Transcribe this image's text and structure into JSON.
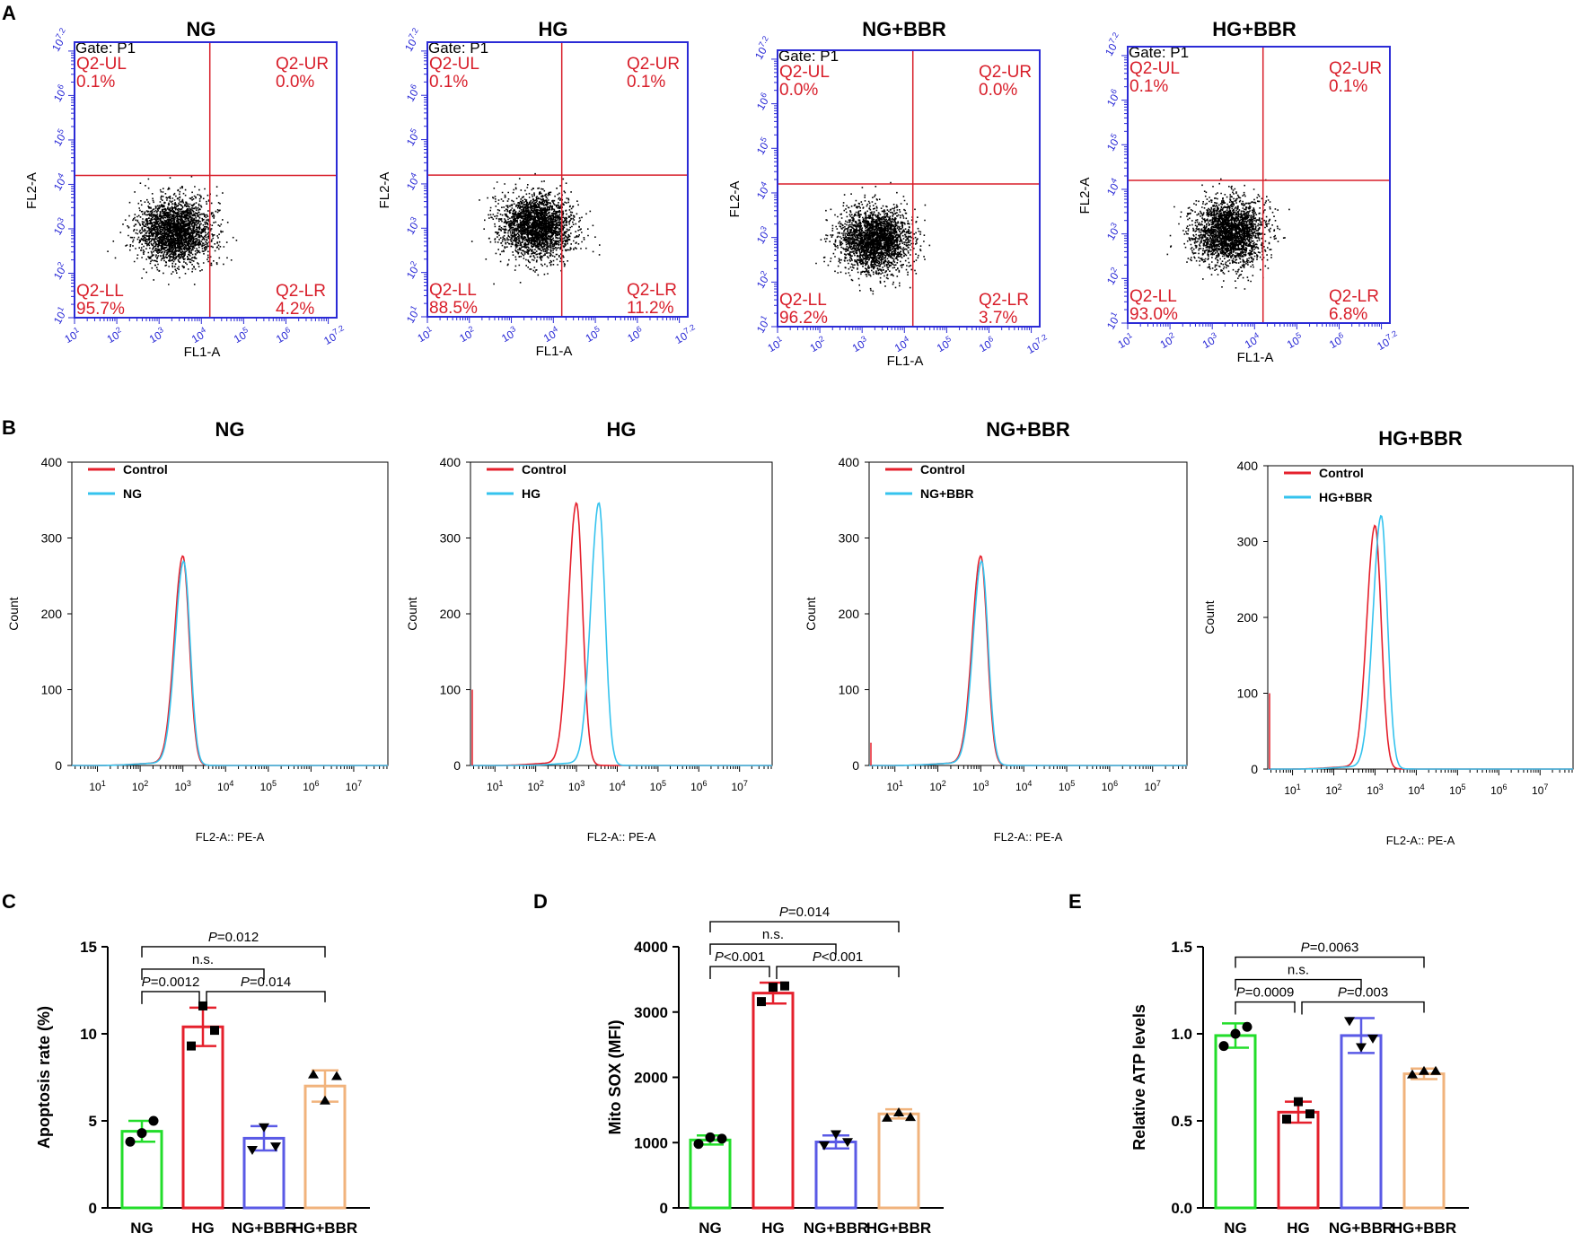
{
  "panel_labels": [
    "A",
    "B",
    "C",
    "D",
    "E"
  ],
  "colors": {
    "scatter_axis": "#2b2bd6",
    "quad_line": "#d81e2a",
    "quad_text": "#d81e2a",
    "control": "#e5202c",
    "treated": "#35c3ee",
    "bar_NG": "#22dd2a",
    "bar_HG": "#e5202c",
    "bar_NGBBR": "#5a5ae6",
    "bar_HGBBR": "#f1b37c"
  },
  "chart_data": [
    {
      "type": "scatter",
      "panel": "A",
      "gate": "Gate: P1",
      "xlabel": "FL1-A",
      "ylabel": "FL2-A",
      "x_ticks": [
        "10^1",
        "10^2",
        "10^3",
        "10^4",
        "10^5",
        "10^6",
        "10^7.2"
      ],
      "y_ticks": [
        "10^1",
        "10^2",
        "10^3",
        "10^4",
        "10^5",
        "10^6",
        "10^7.2"
      ],
      "xlim_log": [
        1,
        7.2
      ],
      "ylim_log": [
        1,
        7.2
      ],
      "quadrant_names": {
        "UL": "Q2-UL",
        "UR": "Q2-UR",
        "LL": "Q2-LL",
        "LR": "Q2-LR"
      },
      "plots": [
        {
          "title": "NG",
          "x_gate_log": 4.2,
          "y_gate_log": 4.2,
          "center_log": [
            3.35,
            2.95
          ],
          "UL": "0.1%",
          "UR": "0.0%",
          "LL": "95.7%",
          "LR": "4.2%"
        },
        {
          "title": "HG",
          "x_gate_log": 4.2,
          "y_gate_log": 4.2,
          "center_log": [
            3.6,
            3.05
          ],
          "UL": "0.1%",
          "UR": "0.1%",
          "LL": "88.5%",
          "LR": "11.2%"
        },
        {
          "title": "NG+BBR",
          "x_gate_log": 4.2,
          "y_gate_log": 4.2,
          "center_log": [
            3.3,
            2.95
          ],
          "UL": "0.0%",
          "UR": "0.0%",
          "LL": "96.2%",
          "LR": "3.7%"
        },
        {
          "title": "HG+BBR",
          "x_gate_log": 4.2,
          "y_gate_log": 4.2,
          "center_log": [
            3.4,
            3.05
          ],
          "UL": "0.1%",
          "UR": "0.1%",
          "LL": "93.0%",
          "LR": "6.8%"
        }
      ]
    },
    {
      "type": "line",
      "panel": "B",
      "xlabel": "FL2-A:: PE-A",
      "ylabel": "Count",
      "y_ticks": [
        0,
        100,
        200,
        300,
        400
      ],
      "ylim": [
        0,
        400
      ],
      "x_ticks_log": [
        1,
        2,
        3,
        4,
        5,
        6,
        7
      ],
      "xlim_log": [
        0.4,
        7.8
      ],
      "legend_control": "Control",
      "plots": [
        {
          "title": "NG",
          "series_name": "NG",
          "control_peak_log": 3.0,
          "control_peak_count": 275,
          "treated_peak_log": 3.02,
          "treated_peak_count": 268
        },
        {
          "title": "HG",
          "series_name": "HG",
          "control_peak_log": 3.0,
          "control_peak_count": 345,
          "treated_peak_log": 3.55,
          "treated_peak_count": 345
        },
        {
          "title": "NG+BBR",
          "series_name": "NG+BBR",
          "control_peak_log": 3.0,
          "control_peak_count": 275,
          "treated_peak_log": 3.02,
          "treated_peak_count": 268
        },
        {
          "title": "HG+BBR",
          "series_name": "HG+BBR",
          "control_peak_log": 3.0,
          "control_peak_count": 320,
          "treated_peak_log": 3.15,
          "treated_peak_count": 333
        }
      ]
    },
    {
      "type": "bar",
      "panel": "C",
      "ylabel": "Apoptosis rate (%)",
      "ylim": [
        0,
        15
      ],
      "y_ticks": [
        0,
        5,
        10,
        15
      ],
      "categories": [
        "NG",
        "HG",
        "NG+BBR",
        "HG+BBR"
      ],
      "values": [
        4.4,
        10.4,
        4.0,
        7.0
      ],
      "errors": [
        0.6,
        1.1,
        0.7,
        0.9
      ],
      "points": [
        [
          3.8,
          4.3,
          5.0
        ],
        [
          9.3,
          11.6,
          10.2
        ],
        [
          3.3,
          4.6,
          3.5
        ],
        [
          7.7,
          6.2,
          7.6
        ]
      ],
      "markers": [
        "circle",
        "square",
        "triangle-down",
        "triangle-up"
      ],
      "comparisons": [
        {
          "a": 0,
          "b": 1,
          "label": "P=0.0012",
          "level": 0
        },
        {
          "a": 1,
          "b": 3,
          "label": "P=0.014",
          "level": 0
        },
        {
          "a": 0,
          "b": 2,
          "label": "n.s.",
          "level": 1
        },
        {
          "a": 0,
          "b": 3,
          "label": "P=0.012",
          "level": 2
        }
      ]
    },
    {
      "type": "bar",
      "panel": "D",
      "ylabel": "Mito SOX (MFI)",
      "ylim": [
        0,
        4000
      ],
      "y_ticks": [
        0,
        1000,
        2000,
        3000,
        4000
      ],
      "categories": [
        "NG",
        "HG",
        "NG+BBR",
        "HG+BBR"
      ],
      "values": [
        1040,
        3290,
        1010,
        1440
      ],
      "errors": [
        70,
        160,
        100,
        70
      ],
      "points": [
        [
          980,
          1080,
          1060
        ],
        [
          3160,
          3380,
          3400
        ],
        [
          950,
          1120,
          1000
        ],
        [
          1390,
          1470,
          1400
        ]
      ],
      "markers": [
        "circle",
        "square",
        "triangle-down",
        "triangle-up"
      ],
      "comparisons": [
        {
          "a": 0,
          "b": 1,
          "label": "P<0.001",
          "level": 0
        },
        {
          "a": 1,
          "b": 3,
          "label": "P<0.001",
          "level": 0
        },
        {
          "a": 0,
          "b": 2,
          "label": "n.s.",
          "level": 1
        },
        {
          "a": 0,
          "b": 3,
          "label": "P=0.014",
          "level": 2
        }
      ]
    },
    {
      "type": "bar",
      "panel": "E",
      "ylabel": "Relative ATP levels",
      "ylim": [
        0,
        1.5
      ],
      "y_ticks": [
        "0.0",
        "0.5",
        "1.0",
        "1.5"
      ],
      "categories": [
        "NG",
        "HG",
        "NG+BBR",
        "HG+BBR"
      ],
      "values": [
        0.99,
        0.55,
        0.99,
        0.77
      ],
      "errors": [
        0.07,
        0.06,
        0.1,
        0.03
      ],
      "points": [
        [
          0.93,
          1.0,
          1.04
        ],
        [
          0.51,
          0.61,
          0.54
        ],
        [
          1.07,
          0.92,
          0.97
        ],
        [
          0.77,
          0.79,
          0.79
        ]
      ],
      "markers": [
        "circle",
        "square",
        "triangle-down",
        "triangle-up"
      ],
      "comparisons": [
        {
          "a": 0,
          "b": 1,
          "label": "P=0.0009",
          "level": 0
        },
        {
          "a": 1,
          "b": 3,
          "label": "P=0.003",
          "level": 0
        },
        {
          "a": 0,
          "b": 2,
          "label": "n.s.",
          "level": 1
        },
        {
          "a": 0,
          "b": 3,
          "label": "P=0.0063",
          "level": 2
        }
      ]
    }
  ]
}
